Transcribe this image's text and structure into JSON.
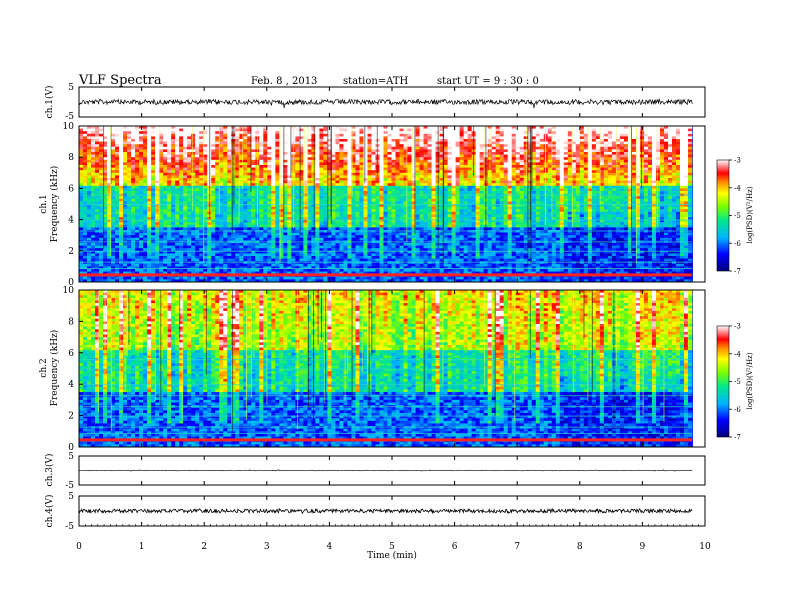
{
  "header": {
    "title": "VLF  Spectra",
    "date": "Feb. 8  , 2013",
    "station": "station=ATH",
    "start": "start  UT =   9 : 30 : 0"
  },
  "chart_data": [
    {
      "type": "line",
      "panel": "ch1-waveform",
      "ylabel": "ch.1(V)",
      "yticks": [
        "5",
        "-5"
      ],
      "ylim": [
        -5,
        5
      ]
    },
    {
      "type": "heatmap",
      "panel": "ch1-spectrogram",
      "ylabel_line1": "ch.1",
      "ylabel_line2": "Frequency  (kHz)",
      "yticks": [
        "0",
        "2",
        "4",
        "6",
        "8",
        "10"
      ],
      "ylim": [
        0,
        10
      ],
      "colorbar": {
        "label": "log(PSD)(V²/Hz)",
        "ticks": [
          "-3",
          "-4",
          "-5",
          "-6",
          "-7"
        ],
        "range": [
          -7,
          -3
        ]
      }
    },
    {
      "type": "heatmap",
      "panel": "ch2-spectrogram",
      "ylabel_line1": "ch.2",
      "ylabel_line2": "Frequency  (kHz)",
      "yticks": [
        "0",
        "2",
        "4",
        "6",
        "8",
        "10"
      ],
      "ylim": [
        0,
        10
      ],
      "colorbar": {
        "label": "log(PSD)(V²/Hz)",
        "ticks": [
          "-3",
          "-4",
          "-5",
          "-6",
          "-7"
        ],
        "range": [
          -7,
          -3
        ]
      }
    },
    {
      "type": "line",
      "panel": "ch3-waveform",
      "ylabel": "ch.3(V)",
      "yticks": [
        "5",
        "-5"
      ],
      "ylim": [
        -5,
        5
      ]
    },
    {
      "type": "line",
      "panel": "ch4-waveform",
      "ylabel": "ch.4(V)",
      "yticks": [
        "5",
        "-5"
      ],
      "ylim": [
        -5,
        5
      ]
    }
  ],
  "xaxis": {
    "label": "Time  (min)",
    "ticks": [
      "0",
      "1",
      "2",
      "3",
      "4",
      "5",
      "6",
      "7",
      "8",
      "9",
      "10"
    ],
    "xlim": [
      0,
      10
    ],
    "data_end": 9.8
  }
}
